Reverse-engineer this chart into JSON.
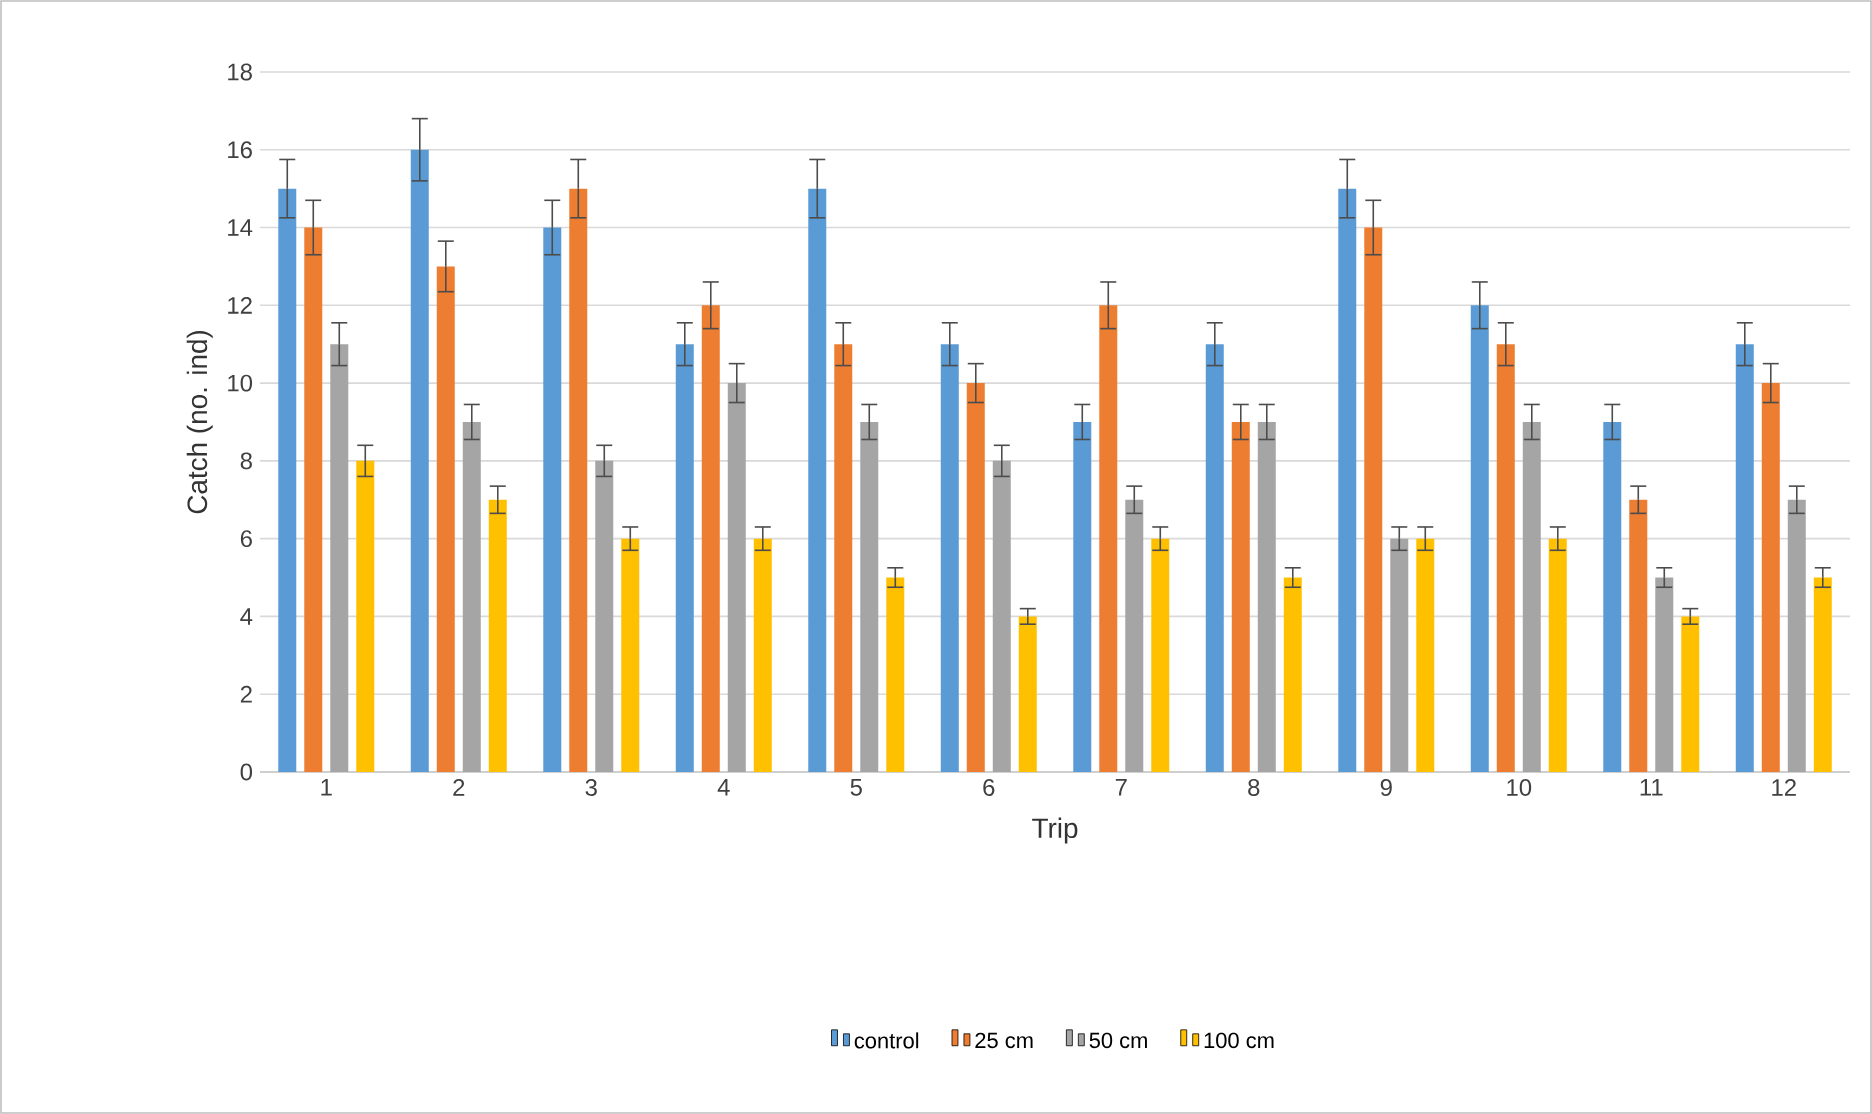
{
  "chart_data": {
    "type": "bar",
    "xlabel": "Trip",
    "ylabel": "Catch (no. ind)",
    "categories": [
      "1",
      "2",
      "3",
      "4",
      "5",
      "6",
      "7",
      "8",
      "9",
      "10",
      "11",
      "12"
    ],
    "series": [
      {
        "name": "control",
        "color": "#5b9bd5",
        "values": [
          15,
          16,
          14,
          11,
          15,
          11,
          9,
          11,
          15,
          12,
          9,
          11
        ],
        "errors": [
          0.75,
          0.8,
          0.7,
          0.55,
          0.75,
          0.55,
          0.45,
          0.55,
          0.75,
          0.6,
          0.45,
          0.55
        ]
      },
      {
        "name": "25 cm",
        "color": "#ed7d31",
        "values": [
          14,
          13,
          15,
          12,
          11,
          10,
          12,
          9,
          14,
          11,
          7,
          10
        ],
        "errors": [
          0.7,
          0.65,
          0.75,
          0.6,
          0.55,
          0.5,
          0.6,
          0.45,
          0.7,
          0.55,
          0.35,
          0.5
        ]
      },
      {
        "name": "50 cm",
        "color": "#a5a5a5",
        "values": [
          11,
          9,
          8,
          10,
          9,
          8,
          7,
          9,
          6,
          9,
          5,
          7
        ],
        "errors": [
          0.55,
          0.45,
          0.4,
          0.5,
          0.45,
          0.4,
          0.35,
          0.45,
          0.3,
          0.45,
          0.25,
          0.35
        ]
      },
      {
        "name": "100 cm",
        "color": "#ffc000",
        "values": [
          8,
          7,
          6,
          6,
          5,
          4,
          6,
          5,
          6,
          6,
          4,
          5
        ],
        "errors": [
          0.4,
          0.35,
          0.3,
          0.3,
          0.25,
          0.2,
          0.3,
          0.25,
          0.3,
          0.3,
          0.2,
          0.25
        ]
      }
    ],
    "ylim": [
      0,
      18
    ],
    "yticks": [
      0,
      2,
      4,
      6,
      8,
      10,
      12,
      14,
      16,
      18
    ],
    "grid": "y",
    "legend": "bottom"
  }
}
